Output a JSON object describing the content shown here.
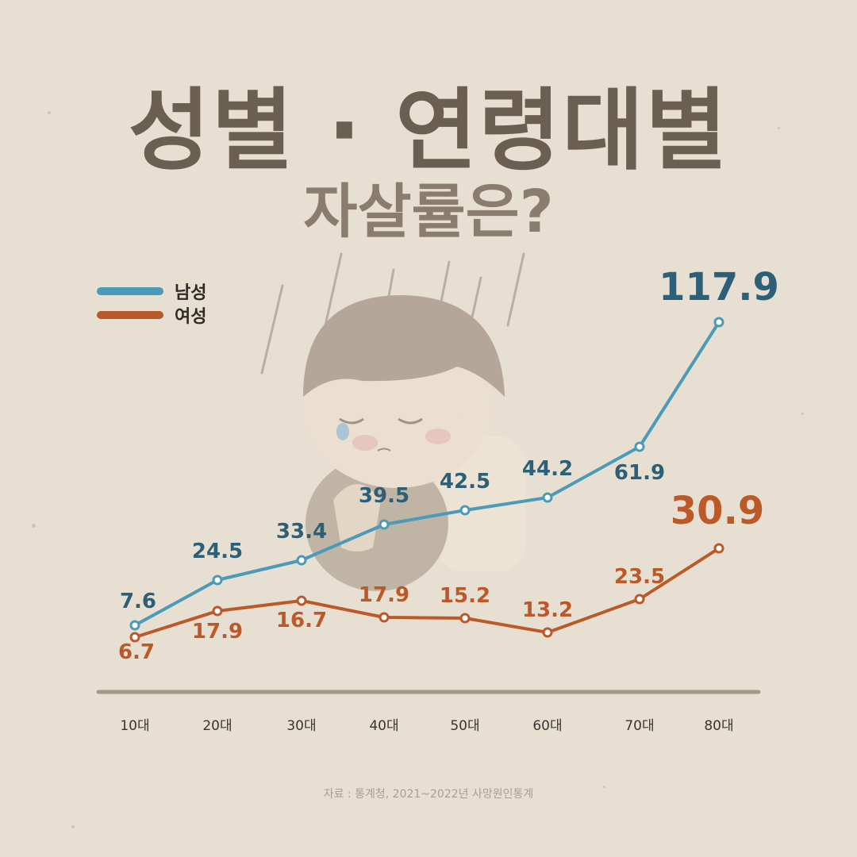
{
  "header": {
    "title_line1": "성별 · 연령대별",
    "title_line2": "자살률은?"
  },
  "legend": {
    "items": [
      {
        "label": "남성",
        "color": "#4a9ab8"
      },
      {
        "label": "여성",
        "color": "#bb5a28"
      }
    ]
  },
  "footer": {
    "source": "자료 : 통계청, 2021~2022년 사망원인통계"
  },
  "colors": {
    "male_line": "#4a9ab8",
    "male_label": "#2c5f78",
    "female_line": "#bb5a28",
    "female_label": "#bb5a28",
    "axis": "#a59888"
  },
  "chart_data": {
    "type": "line",
    "categories": [
      "10대",
      "20대",
      "30대",
      "40대",
      "50대",
      "60대",
      "70대",
      "80대"
    ],
    "series": [
      {
        "name": "남성",
        "values": [
          7.6,
          24.5,
          33.4,
          39.5,
          42.5,
          44.2,
          61.9,
          117.9
        ],
        "labels": [
          "7.6",
          "24.5",
          "33.4",
          "39.5",
          "42.5",
          "44.2",
          "61.9",
          "117.9"
        ]
      },
      {
        "name": "여성",
        "values": [
          6.7,
          17.9,
          16.7,
          17.9,
          15.2,
          13.2,
          23.5,
          30.9
        ],
        "labels": [
          "6.7",
          "17.9",
          "16.7",
          "17.9",
          "15.2",
          "13.2",
          "23.5",
          "30.9"
        ]
      }
    ],
    "legend_position": "top-left",
    "grid": false
  }
}
